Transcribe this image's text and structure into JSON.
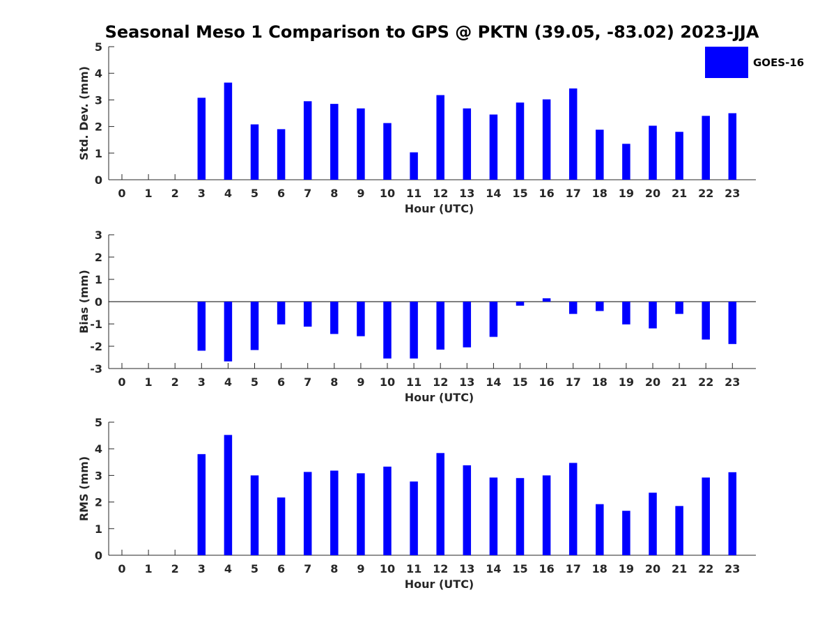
{
  "figure": {
    "title": "Seasonal Meso 1 Comparison to GPS @ PKTN (39.05, -83.02) 2023-JJA",
    "legend": {
      "label": "GOES-16",
      "color": "#0000ff",
      "position": "top-right"
    }
  },
  "chart_data": [
    {
      "type": "bar",
      "xlabel": "Hour (UTC)",
      "ylabel": "Std. Dev. (mm)",
      "ylim": [
        0,
        5
      ],
      "yticks": [
        0,
        1,
        2,
        3,
        4,
        5
      ],
      "categories": [
        "0",
        "1",
        "2",
        "3",
        "4",
        "5",
        "6",
        "7",
        "8",
        "9",
        "10",
        "11",
        "12",
        "13",
        "14",
        "15",
        "16",
        "17",
        "18",
        "19",
        "20",
        "21",
        "22",
        "23"
      ],
      "series": [
        {
          "name": "GOES-16",
          "color": "#0000ff",
          "values": [
            null,
            null,
            null,
            3.08,
            3.65,
            2.08,
            1.9,
            2.95,
            2.85,
            2.68,
            2.13,
            1.03,
            3.18,
            2.68,
            2.45,
            2.9,
            3.02,
            3.43,
            1.88,
            1.35,
            2.03,
            1.8,
            2.4,
            2.5
          ]
        }
      ]
    },
    {
      "type": "bar",
      "xlabel": "Hour (UTC)",
      "ylabel": "Bias (mm)",
      "ylim": [
        -3,
        3
      ],
      "yticks": [
        -3,
        -2,
        -1,
        0,
        1,
        2,
        3
      ],
      "zero_line": true,
      "categories": [
        "0",
        "1",
        "2",
        "3",
        "4",
        "5",
        "6",
        "7",
        "8",
        "9",
        "10",
        "11",
        "12",
        "13",
        "14",
        "15",
        "16",
        "17",
        "18",
        "19",
        "20",
        "21",
        "22",
        "23"
      ],
      "series": [
        {
          "name": "GOES-16",
          "color": "#0000ff",
          "values": [
            null,
            null,
            null,
            -2.2,
            -2.68,
            -2.17,
            -1.02,
            -1.12,
            -1.45,
            -1.55,
            -2.55,
            -2.55,
            -2.15,
            -2.05,
            -1.58,
            -0.18,
            0.15,
            -0.55,
            -0.42,
            -1.02,
            -1.2,
            -0.55,
            -1.7,
            -1.9
          ]
        }
      ]
    },
    {
      "type": "bar",
      "xlabel": "Hour (UTC)",
      "ylabel": "RMS (mm)",
      "ylim": [
        0,
        5
      ],
      "yticks": [
        0,
        1,
        2,
        3,
        4,
        5
      ],
      "categories": [
        "0",
        "1",
        "2",
        "3",
        "4",
        "5",
        "6",
        "7",
        "8",
        "9",
        "10",
        "11",
        "12",
        "13",
        "14",
        "15",
        "16",
        "17",
        "18",
        "19",
        "20",
        "21",
        "22",
        "23"
      ],
      "series": [
        {
          "name": "GOES-16",
          "color": "#0000ff",
          "values": [
            null,
            null,
            null,
            3.8,
            4.52,
            3.0,
            2.17,
            3.13,
            3.18,
            3.08,
            3.33,
            2.77,
            3.84,
            3.38,
            2.92,
            2.9,
            3.0,
            3.47,
            1.92,
            1.67,
            2.35,
            1.85,
            2.92,
            3.12
          ]
        }
      ]
    }
  ]
}
